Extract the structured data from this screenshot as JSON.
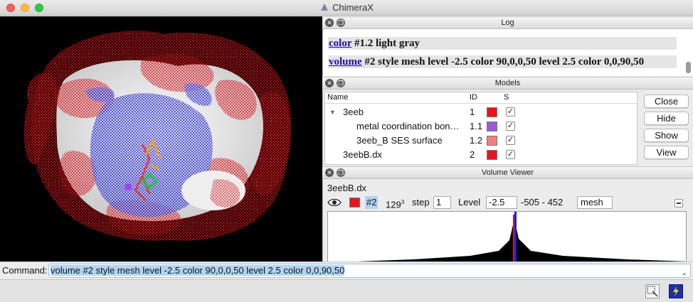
{
  "window": {
    "title": "ChimeraX"
  },
  "log": {
    "header": "Log",
    "lines": [
      {
        "cmd": "color",
        "rest": " #1.2 light gray"
      },
      {
        "cmd": "volume",
        "rest": " #2 style mesh level -2.5 color 90,0,0,50 level 2.5 color 0,0,90,50"
      }
    ]
  },
  "models": {
    "header": "Models",
    "columns": {
      "name": "Name",
      "id": "ID",
      "shown": "S"
    },
    "rows": [
      {
        "name": "3eeb",
        "id": "1",
        "color": "#e8141c",
        "shown": true,
        "indent": 0,
        "expandable": true
      },
      {
        "name": "metal coordination bon…",
        "id": "1.1",
        "color": "#9b59d6",
        "shown": true,
        "indent": 2
      },
      {
        "name": "3eeb_B SES surface",
        "id": "1.2",
        "color": "#f08080",
        "shown": true,
        "indent": 2
      },
      {
        "name": "3eebB.dx",
        "id": "2",
        "color": "#e8141c",
        "shown": true,
        "indent": 1
      }
    ],
    "buttons": [
      "Close",
      "Hide",
      "Show",
      "View"
    ]
  },
  "volume_viewer": {
    "header": "Volume Viewer",
    "name": "3eebB.dx",
    "color": "#e8141c",
    "id": "#2",
    "size": "129",
    "size_exp": "3",
    "step_label": "step",
    "step": "1",
    "level_label": "Level",
    "level": "-2.5",
    "range": "-505 - 452",
    "style": "mesh"
  },
  "command": {
    "label": "Command:",
    "value": "volume #2 style mesh level -2.5 color 90,0,0,50 level 2.5 color 0,0,90,50"
  },
  "icons": [
    "close-icon",
    "float-icon",
    "eye-icon",
    "select-tool-icon",
    "lightning-icon",
    "chevron-down-icon"
  ]
}
